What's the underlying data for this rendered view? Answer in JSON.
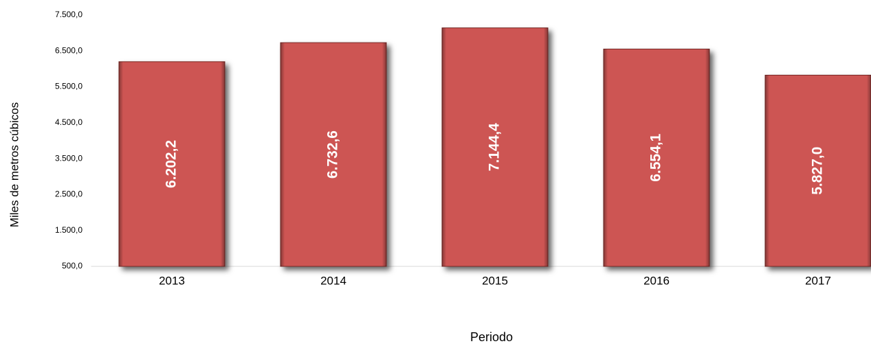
{
  "chart_data": {
    "type": "bar",
    "y_label": "Miles de metros cúbicos",
    "x_label": "Periodo",
    "categories": [
      "2013",
      "2014",
      "2015",
      "2016",
      "2017"
    ],
    "values": [
      6202.2,
      6732.6,
      7144.4,
      6554.1,
      5827.0
    ],
    "value_labels": [
      "6.202,2",
      "6.732,6",
      "7.144,4",
      "6.554,1",
      "5.827,0"
    ],
    "color": "#cd5553",
    "ylim": [
      500,
      7500
    ],
    "yticks": [
      {
        "value": 500,
        "label": "500,0"
      },
      {
        "value": 1500,
        "label": "1.500,0"
      },
      {
        "value": 2500,
        "label": "2.500,0"
      },
      {
        "value": 3500,
        "label": "3.500,0"
      },
      {
        "value": 4500,
        "label": "4.500,0"
      },
      {
        "value": 5500,
        "label": "5.500,0"
      },
      {
        "value": 6500,
        "label": "6.500,0"
      },
      {
        "value": 7500,
        "label": "7.500,0"
      }
    ],
    "grid": false
  }
}
